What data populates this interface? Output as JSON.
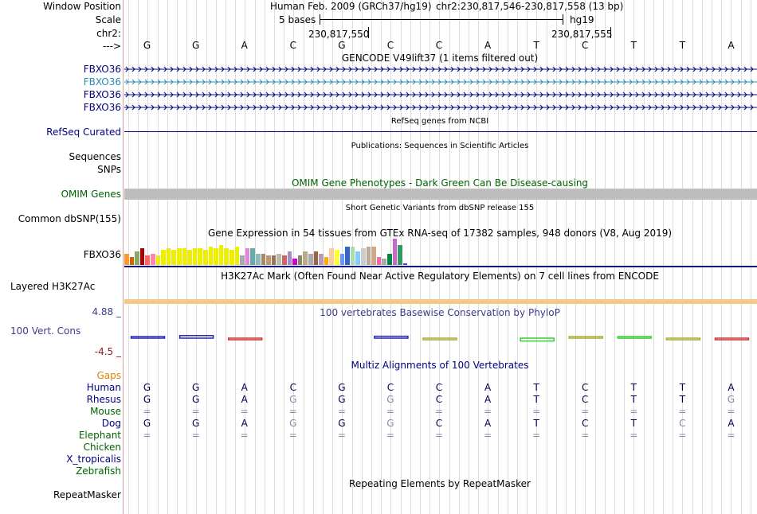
{
  "labels": {
    "window_position": "Window Position",
    "scale": "Scale",
    "chr": "chr2:",
    "arrow": "--->",
    "fbxo36_1": "FBXO36",
    "fbxo36_2": "FBXO36",
    "fbxo36_3": "FBXO36",
    "fbxo36_4": "FBXO36",
    "refseq": "RefSeq Curated",
    "sequences": "Sequences",
    "snps": "SNPs",
    "omim": "OMIM Genes",
    "common_dbsnp": "Common dbSNP(155)",
    "gtex_gene": "FBXO36",
    "h3k27ac": "Layered H3K27Ac",
    "phylop_max": "4.88 _",
    "phylop_name": "100 Vert. Cons",
    "phylop_min": "-4.5 _",
    "gaps": "Gaps",
    "human": "Human",
    "rhesus": "Rhesus",
    "mouse": "Mouse",
    "dog": "Dog",
    "elephant": "Elephant",
    "chicken": "Chicken",
    "x_tropicalis": "X_tropicalis",
    "zebrafish": "Zebrafish",
    "repeatmasker": "RepeatMasker"
  },
  "header": {
    "assembly": "Human Feb. 2009 (GRCh37/hg19)",
    "position": "chr2:230,817,546-230,817,558 (13 bp)",
    "scale_text": "5 bases",
    "scale_db": "hg19",
    "coord_1": "230,817,550",
    "coord_2": "230,817,555"
  },
  "bases": [
    "G",
    "G",
    "A",
    "C",
    "G",
    "C",
    "C",
    "A",
    "T",
    "C",
    "T",
    "T",
    "A"
  ],
  "track_titles": {
    "gencode": "GENCODE V49lift37 (1 items filtered out)",
    "refseq": "RefSeq genes from NCBI",
    "publications": "Publications: Sequences in Scientific Articles",
    "omim": "OMIM Gene Phenotypes - Dark Green Can Be Disease-causing",
    "dbsnp": "Short Genetic Variants from dbSNP release 155",
    "gtex": "Gene Expression in 54 tissues from GTEx RNA-seq of 17382 samples, 948 donors (V8, Aug 2019)",
    "h3k27ac": "H3K27Ac Mark (Often Found Near Active Regulatory Elements) on 7 cell lines from ENCODE",
    "phylop": "100 vertebrates Basewise Conservation by PhyloP",
    "multiz": "Multiz Alignments of 100 Vertebrates",
    "repeats": "Repeating Elements by RepeatMasker"
  },
  "alignment": {
    "human": [
      "G",
      "G",
      "A",
      "C",
      "G",
      "C",
      "C",
      "A",
      "T",
      "C",
      "T",
      "T",
      "A"
    ],
    "rhesus": [
      "G",
      "G",
      "A",
      "G",
      "G",
      "G",
      "C",
      "A",
      "T",
      "C",
      "T",
      "T",
      "G"
    ],
    "mouse": [
      "=",
      "=",
      "=",
      "=",
      "=",
      "=",
      "=",
      "=",
      "=",
      "=",
      "=",
      "=",
      "="
    ],
    "dog": [
      "G",
      "G",
      "A",
      "G",
      "G",
      "G",
      "C",
      "A",
      "T",
      "C",
      "T",
      "C",
      "A"
    ],
    "elephant": [
      "=",
      "=",
      "=",
      "=",
      "=",
      "=",
      "=",
      "=",
      "=",
      "=",
      "=",
      "=",
      "="
    ]
  },
  "alignment_gray": {
    "rhesus": [
      false,
      false,
      false,
      true,
      false,
      true,
      false,
      false,
      false,
      false,
      false,
      false,
      true
    ],
    "dog": [
      false,
      false,
      false,
      true,
      false,
      true,
      false,
      false,
      false,
      false,
      false,
      true,
      false
    ]
  },
  "gtex": {
    "values": [
      14,
      10,
      16,
      20,
      12,
      14,
      12,
      18,
      20,
      18,
      20,
      20,
      18,
      20,
      20,
      18,
      22,
      20,
      24,
      20,
      18,
      22,
      12,
      20,
      20,
      14,
      14,
      12,
      12,
      14,
      12,
      16,
      8,
      12,
      16,
      14,
      16,
      14,
      10,
      20,
      18,
      14,
      22,
      22,
      16,
      20,
      22,
      22,
      10,
      8,
      14,
      32,
      24,
      2
    ],
    "colors": [
      "#ff9933",
      "#cc6600",
      "#88aa66",
      "#aa0000",
      "#ff6666",
      "#ff88aa",
      "#eeee00",
      "#eeee00",
      "#eeee00",
      "#eeee00",
      "#eeee00",
      "#eeee00",
      "#eeee00",
      "#eeee00",
      "#eeee00",
      "#eeee00",
      "#eeee00",
      "#eeee00",
      "#eeee00",
      "#eeee00",
      "#eeee00",
      "#eeee00",
      "#aaaaaa",
      "#dd88dd",
      "#66aaaa",
      "#88bbbb",
      "#aa8866",
      "#bb9977",
      "#997755",
      "#bbbbaa",
      "#cc6666",
      "#aa88cc",
      "#cc00cc",
      "#888866",
      "#bbaa88",
      "#aaaaaa",
      "#996644",
      "#bb99bb",
      "#ffaa00",
      "#ffcc99",
      "#ffff33",
      "#6699ff",
      "#3366cc",
      "#aaddaa",
      "#88ccff",
      "#cccccc",
      "#bbaa99",
      "#ccaa88",
      "#ff66aa",
      "#aaaaaa",
      "#008844",
      "#cc66cc",
      "#339966",
      "#6633cc"
    ]
  },
  "phylop": {
    "scores": [
      0.3,
      0.8,
      -0.2,
      0,
      0,
      0.6,
      -0.3,
      0,
      -0.9,
      0.5,
      0.4,
      -0.2,
      -0.1
    ],
    "colors": [
      "#2222aa",
      "#2222aa",
      "#cc3333",
      "#2222aa",
      "#2222aa",
      "#2222aa",
      "#aaaa33",
      "#2222aa",
      "#33cc33",
      "#aaaa33",
      "#33cc33",
      "#aaaa33",
      "#cc3333"
    ]
  }
}
